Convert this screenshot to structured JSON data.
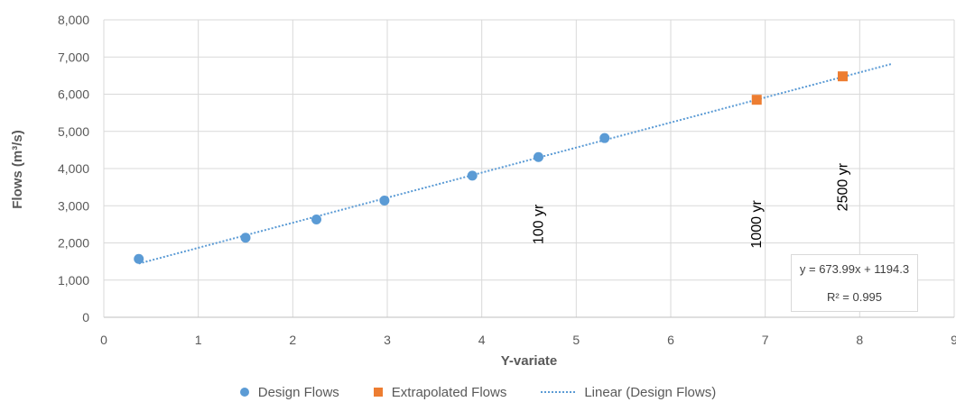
{
  "chart_data": {
    "type": "scatter",
    "xlabel": "Y-variate",
    "ylabel": "Flows (m³/s)",
    "xlim": [
      0,
      9
    ],
    "ylim": [
      0,
      8000
    ],
    "x_ticks": [
      "0",
      "1",
      "2",
      "3",
      "4",
      "5",
      "6",
      "7",
      "8",
      "9"
    ],
    "y_ticks": [
      "0",
      "1,000",
      "2,000",
      "3,000",
      "4,000",
      "5,000",
      "6,000",
      "7,000",
      "8,000"
    ],
    "grid": "vertical and horizontal major gridlines",
    "legend_position": "bottom",
    "series": [
      {
        "name": "Design Flows",
        "marker": "circle",
        "color": "#5b9bd5",
        "points": [
          {
            "x": 0.37,
            "y": 1570
          },
          {
            "x": 1.5,
            "y": 2140
          },
          {
            "x": 2.25,
            "y": 2630
          },
          {
            "x": 2.97,
            "y": 3140
          },
          {
            "x": 3.9,
            "y": 3810
          },
          {
            "x": 4.6,
            "y": 4310
          },
          {
            "x": 5.3,
            "y": 4820
          }
        ]
      },
      {
        "name": "Extrapolated Flows",
        "marker": "square",
        "color": "#ed7d31",
        "points": [
          {
            "x": 6.91,
            "y": 5850
          },
          {
            "x": 7.82,
            "y": 6480
          }
        ]
      }
    ],
    "trendline": {
      "name": "Linear (Design Flows)",
      "style": "dotted",
      "color": "#5b9bd5",
      "slope": 673.99,
      "intercept": 1194.3,
      "x_range": [
        0.37,
        8.33
      ],
      "equation": "y = 673.99x + 1194.3",
      "r_squared": "R² = 0.995"
    },
    "annotations": [
      {
        "text": "100 yr",
        "x": 4.6,
        "y": 2500
      },
      {
        "text": "1000 yr",
        "x": 6.91,
        "y": 2500
      },
      {
        "text": "2500 yr",
        "x": 7.82,
        "y": 3500
      }
    ]
  }
}
